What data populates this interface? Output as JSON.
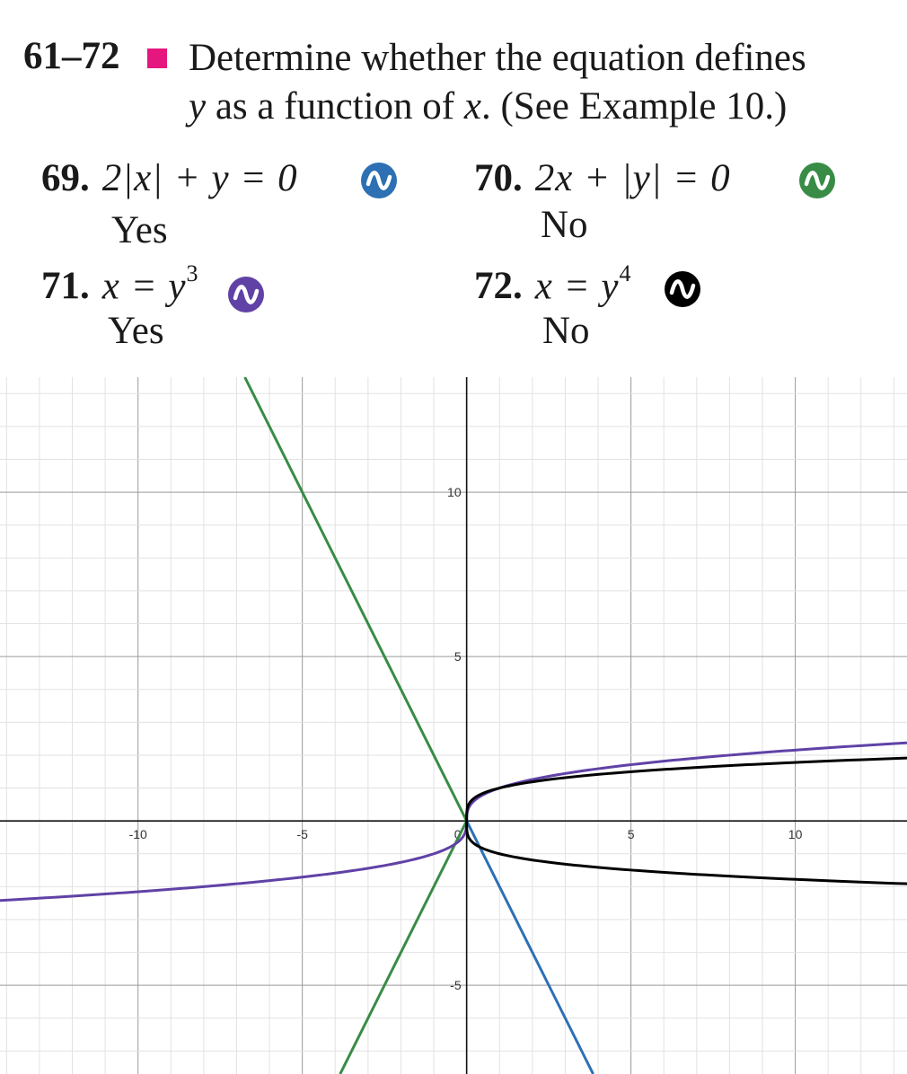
{
  "header": {
    "range": "61–72",
    "instruction_line1": "Determine whether the equation defines",
    "instruction_line2_var_y": "y",
    "instruction_line2_mid": " as a function of ",
    "instruction_line2_var_x": "x",
    "instruction_line2_end": ". (See Example 10.)"
  },
  "problems": [
    {
      "number": "69.",
      "equation": "2|x| + y = 0",
      "answer": "Yes",
      "badge_color": "#2d70b3"
    },
    {
      "number": "70.",
      "equation": "2x + |y| = 0",
      "answer": "No",
      "badge_color": "#388c46"
    },
    {
      "number": "71.",
      "equation_base": "x = y",
      "exponent": "3",
      "answer": "Yes",
      "badge_color": "#6042a6"
    },
    {
      "number": "72.",
      "equation_base": "x = y",
      "exponent": "4",
      "answer": "No",
      "badge_color": "#000000"
    }
  ],
  "chart_data": {
    "type": "line",
    "xlim": [
      -14.2,
      13.4
    ],
    "ylim": [
      -7.7,
      13.5
    ],
    "x_ticks": [
      -10,
      -5,
      0,
      5,
      10
    ],
    "y_ticks": [
      -5,
      5,
      10
    ],
    "x_tick_labels": [
      "-10",
      "-5",
      "0",
      "5",
      "10"
    ],
    "y_tick_labels": [
      "-5",
      "5",
      "10"
    ],
    "grid": true,
    "minor_grid_step": 1,
    "major_grid_step": 5,
    "series": [
      {
        "equation": "2|x| + y = 0",
        "color": "#2d70b3",
        "points": [
          [
            0,
            0
          ],
          [
            3.85,
            -7.7
          ]
        ]
      },
      {
        "equation": "2x + |y| = 0",
        "color": "#388c46",
        "points": [
          [
            -6.75,
            13.5
          ],
          [
            0,
            0
          ],
          [
            -3.85,
            -7.7
          ]
        ]
      },
      {
        "equation": "x = y^3",
        "color": "#6042a6",
        "relation": "x=y^3",
        "y_range": [
          -2.45,
          2.4
        ]
      },
      {
        "equation": "x = y^4",
        "color": "#000000",
        "relation": "x=y^4",
        "y_range": [
          -1.92,
          1.92
        ]
      }
    ]
  }
}
